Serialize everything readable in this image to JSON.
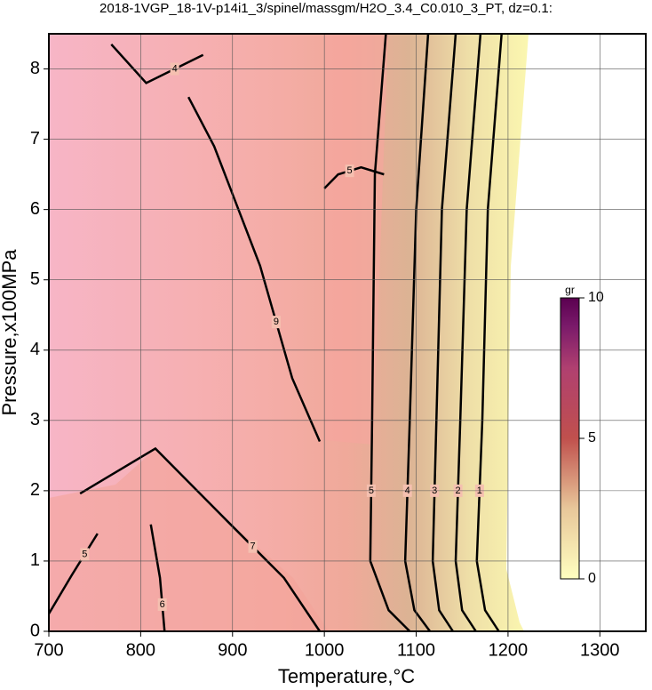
{
  "chart_data": {
    "type": "contour",
    "title": "2018-1VGP_18-1V-p14i1_3/spinel/massgm/H2O_3.4_C0.010_3_PT, dz=0.1:",
    "xlabel": "Temperature,°C",
    "ylabel": "Pressure,x100MPa",
    "xlim": [
      700,
      1350
    ],
    "ylim": [
      0,
      8.5
    ],
    "xticks": [
      700,
      800,
      900,
      1000,
      1100,
      1200,
      1300
    ],
    "yticks": [
      0,
      1,
      2,
      3,
      4,
      5,
      6,
      7,
      8
    ],
    "grid": true,
    "contours": [
      {
        "level": 5,
        "x": [
          1067,
          1055,
          1052,
          1050,
          1070,
          1093
        ],
        "y": [
          8.5,
          6.5,
          3,
          1,
          0.3,
          0
        ]
      },
      {
        "level": 4,
        "x": [
          1113,
          1100,
          1093,
          1088,
          1098,
          1115
        ],
        "y": [
          8.5,
          6,
          3,
          1,
          0.3,
          0
        ]
      },
      {
        "level": 3,
        "x": [
          1143,
          1128,
          1122,
          1118,
          1125,
          1140
        ],
        "y": [
          8.5,
          6,
          3,
          1,
          0.3,
          0
        ]
      },
      {
        "level": 2,
        "x": [
          1170,
          1155,
          1148,
          1143,
          1150,
          1165
        ],
        "y": [
          8.5,
          6,
          3,
          1,
          0.3,
          0
        ]
      },
      {
        "level": 1,
        "x": [
          1193,
          1178,
          1172,
          1166,
          1175,
          1190
        ],
        "y": [
          8.5,
          6,
          3,
          1,
          0.3,
          0
        ]
      },
      {
        "level": 9,
        "x": [
          852,
          880,
          930,
          965,
          995
        ],
        "y": [
          7.6,
          6.9,
          5.2,
          3.6,
          2.7
        ]
      },
      {
        "level": 5,
        "x": [
          1000,
          1015,
          1040,
          1065
        ],
        "y": [
          6.3,
          6.5,
          6.6,
          6.5
        ]
      },
      {
        "level": 7,
        "x": [
          734,
          816,
          888,
          956,
          995
        ],
        "y": [
          1.96,
          2.6,
          1.65,
          0.76,
          0
        ]
      },
      {
        "level": 5,
        "x": [
          700,
          725,
          753
        ],
        "y": [
          0.25,
          0.8,
          1.39
        ]
      },
      {
        "level": 6,
        "x": [
          811,
          821,
          826
        ],
        "y": [
          1.52,
          0.76,
          0
        ]
      },
      {
        "level": 4,
        "x": [
          768,
          806,
          868
        ],
        "y": [
          8.35,
          7.8,
          8.2
        ]
      }
    ],
    "colorbar": {
      "label": "gr",
      "lim": [
        0,
        10
      ],
      "ticks": [
        0,
        5,
        10
      ]
    }
  }
}
